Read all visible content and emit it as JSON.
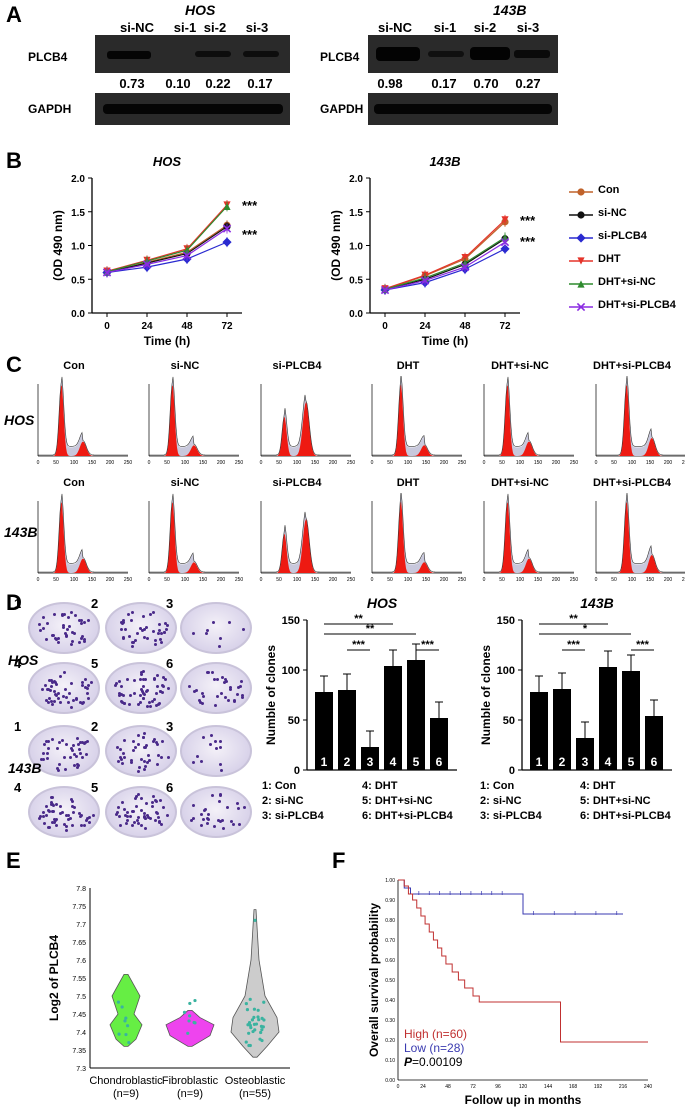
{
  "panels": [
    "A",
    "B",
    "C",
    "D",
    "E",
    "F"
  ],
  "panelA": {
    "blots": [
      {
        "cell": "HOS",
        "lanes": [
          "si-NC",
          "si-1",
          "si-2",
          "si-3"
        ],
        "protein": "PLCB4",
        "densities": [
          "0.73",
          "0.10",
          "0.22",
          "0.17"
        ],
        "loading": "GAPDH"
      },
      {
        "cell": "143B",
        "lanes": [
          "si-NC",
          "si-1",
          "si-2",
          "si-3"
        ],
        "protein": "PLCB4",
        "densities": [
          "0.98",
          "0.17",
          "0.70",
          "0.27"
        ],
        "loading": "GAPDH"
      }
    ]
  },
  "panelB": {
    "ylabel": "(OD 490 nm)",
    "xlabel": "Time (h)",
    "sig": "***",
    "legend": [
      {
        "name": "Con",
        "color": "#c0622a",
        "marker": "circle"
      },
      {
        "name": "si-NC",
        "color": "#111111",
        "marker": "circle"
      },
      {
        "name": "si-PLCB4",
        "color": "#2a2ad0",
        "marker": "diamond"
      },
      {
        "name": "DHT",
        "color": "#e5342a",
        "marker": "tri-down"
      },
      {
        "name": "DHT+si-NC",
        "color": "#2e8b2e",
        "marker": "tri-up"
      },
      {
        "name": "DHT+si-PLCB4",
        "color": "#8a2be2",
        "marker": "x"
      }
    ]
  },
  "chart_data": [
    {
      "type": "line",
      "title": "HOS",
      "xlabel": "Time (h)",
      "ylabel": "(OD 490 nm)",
      "x": [
        0,
        24,
        48,
        72
      ],
      "ylim": [
        0,
        2.0
      ],
      "yticks": [
        "0.0",
        "0.5",
        "1.0",
        "1.5",
        "2.0"
      ],
      "series": [
        {
          "name": "Con",
          "values": [
            0.6,
            0.75,
            0.9,
            1.3
          ]
        },
        {
          "name": "si-NC",
          "values": [
            0.6,
            0.74,
            0.88,
            1.28
          ]
        },
        {
          "name": "si-PLCB4",
          "values": [
            0.6,
            0.68,
            0.8,
            1.05
          ]
        },
        {
          "name": "DHT",
          "values": [
            0.62,
            0.78,
            0.95,
            1.6
          ]
        },
        {
          "name": "DHT+si-NC",
          "values": [
            0.61,
            0.77,
            0.93,
            1.58
          ]
        },
        {
          "name": "DHT+si-PLCB4",
          "values": [
            0.6,
            0.72,
            0.85,
            1.25
          ]
        }
      ]
    },
    {
      "type": "line",
      "title": "143B",
      "xlabel": "Time (h)",
      "ylabel": "(OD 490 nm)",
      "x": [
        0,
        24,
        48,
        72
      ],
      "ylim": [
        0,
        2.0
      ],
      "yticks": [
        "0.0",
        "0.5",
        "1.0",
        "1.5",
        "2.0"
      ],
      "series": [
        {
          "name": "Con",
          "values": [
            0.35,
            0.55,
            0.8,
            1.35
          ]
        },
        {
          "name": "si-NC",
          "values": [
            0.35,
            0.5,
            0.72,
            1.1
          ]
        },
        {
          "name": "si-PLCB4",
          "values": [
            0.34,
            0.45,
            0.65,
            0.95
          ]
        },
        {
          "name": "DHT",
          "values": [
            0.36,
            0.56,
            0.82,
            1.38
          ]
        },
        {
          "name": "DHT+si-NC",
          "values": [
            0.35,
            0.52,
            0.74,
            1.12
          ]
        },
        {
          "name": "DHT+si-PLCB4",
          "values": [
            0.34,
            0.48,
            0.68,
            1.05
          ]
        }
      ]
    },
    {
      "type": "bar",
      "title": "HOS",
      "ylabel": "Numble of clones",
      "ylim": [
        0,
        150
      ],
      "yticks": [
        "0",
        "50",
        "100",
        "150"
      ],
      "categories": [
        "1",
        "2",
        "3",
        "4",
        "5",
        "6"
      ],
      "values": [
        78,
        80,
        23,
        104,
        110,
        52
      ],
      "sig": [
        {
          "from": 1,
          "to": 4,
          "label": "**"
        },
        {
          "from": 1,
          "to": 5,
          "label": "**"
        },
        {
          "from": 2,
          "to": 3,
          "label": "***"
        },
        {
          "from": 5,
          "to": 6,
          "label": "***"
        }
      ]
    },
    {
      "type": "bar",
      "title": "143B",
      "ylabel": "Numble of clones",
      "ylim": [
        0,
        150
      ],
      "yticks": [
        "0",
        "50",
        "100",
        "150"
      ],
      "categories": [
        "1",
        "2",
        "3",
        "4",
        "5",
        "6"
      ],
      "values": [
        78,
        81,
        32,
        103,
        99,
        54
      ],
      "sig": [
        {
          "from": 1,
          "to": 4,
          "label": "**"
        },
        {
          "from": 1,
          "to": 5,
          "label": "*"
        },
        {
          "from": 2,
          "to": 3,
          "label": "***"
        },
        {
          "from": 5,
          "to": 6,
          "label": "***"
        }
      ]
    }
  ],
  "panelC": {
    "conditions": [
      "Con",
      "si-NC",
      "si-PLCB4",
      "DHT",
      "DHT+si-NC",
      "DHT+si-PLCB4"
    ],
    "rows": [
      "HOS",
      "143B"
    ],
    "axis_ticks": [
      "0",
      "50",
      "100",
      "150",
      "200",
      "250"
    ]
  },
  "panelD": {
    "rows": [
      "HOS",
      "143B"
    ],
    "dish_numbers": [
      "1",
      "2",
      "3",
      "4",
      "5",
      "6"
    ],
    "key": [
      "1: Con",
      "2: si-NC",
      "3: si-PLCB4",
      "4: DHT",
      "5: DHT+si-NC",
      "6: DHT+si-PLCB4"
    ]
  },
  "panelE": {
    "ylabel": "Log2 of PLCB4",
    "yticks": [
      "7.3",
      "7.35",
      "7.4",
      "7.45",
      "7.5",
      "7.55",
      "7.6",
      "7.65",
      "7.7",
      "7.75",
      "7.8"
    ],
    "groups": [
      {
        "name": "Chondroblastic",
        "n": "(n=9)",
        "color": "#66ee44"
      },
      {
        "name": "Fibroblastic",
        "n": "(n=9)",
        "color": "#ee44ee"
      },
      {
        "name": "Osteoblastic",
        "n": "(n=55)",
        "color": "#cccccc"
      }
    ]
  },
  "panelF": {
    "ylabel": "Overall survival probability",
    "xlabel": "Follow up in months",
    "yticks": [
      "0.00",
      "0.10",
      "0.20",
      "0.30",
      "0.40",
      "0.50",
      "0.60",
      "0.70",
      "0.80",
      "0.90",
      "1.00"
    ],
    "xticks": [
      "0",
      "24",
      "48",
      "72",
      "96",
      "120",
      "144",
      "168",
      "192",
      "216",
      "240"
    ],
    "high": "High (n=60)",
    "low": "Low (n=28)",
    "p_prefix": "P",
    "p_value": "=0.00109"
  }
}
